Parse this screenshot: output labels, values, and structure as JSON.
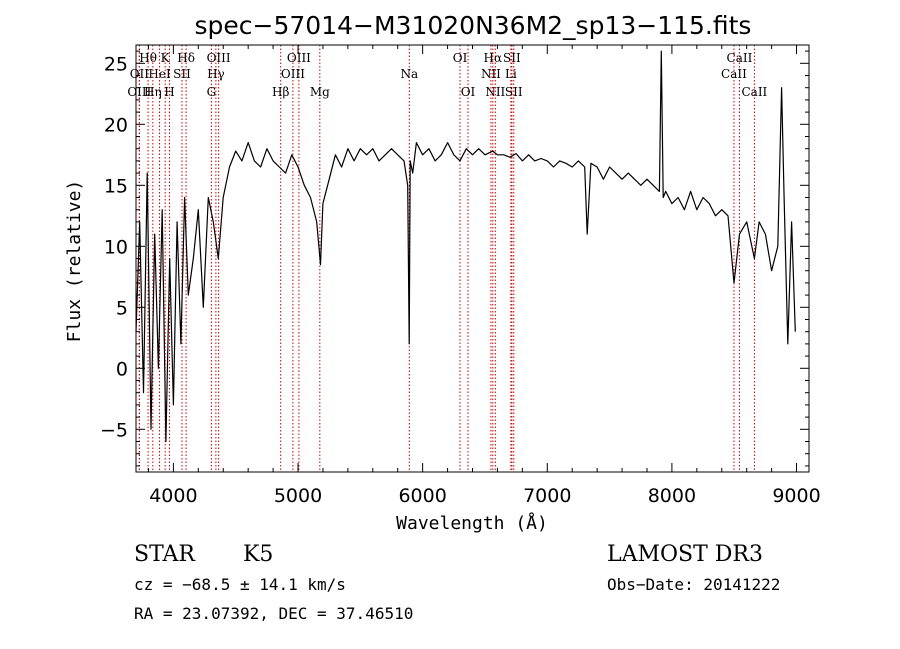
{
  "chart_data": {
    "type": "line",
    "title": "spec−57014−M31020N36M2_sp13−115.fits",
    "xlabel": "Wavelength (Å)",
    "ylabel": "Flux (relative)",
    "xlim": [
      3700,
      9100
    ],
    "ylim": [
      -8.5,
      26.5
    ],
    "xticks": [
      4000,
      5000,
      6000,
      7000,
      8000,
      9000
    ],
    "yticks": [
      -5,
      0,
      5,
      10,
      15,
      20,
      25
    ],
    "xtick_labels": [
      "4000",
      "5000",
      "6000",
      "7000",
      "8000",
      "9000"
    ],
    "ytick_labels": [
      "−5",
      "0",
      "5",
      "10",
      "15",
      "20",
      "25"
    ],
    "grid": false,
    "series": [
      {
        "name": "flux",
        "x": [
          3700,
          3730,
          3760,
          3790,
          3820,
          3850,
          3880,
          3910,
          3940,
          3970,
          4000,
          4030,
          4060,
          4090,
          4120,
          4160,
          4200,
          4240,
          4280,
          4320,
          4360,
          4400,
          4450,
          4500,
          4550,
          4600,
          4650,
          4700,
          4750,
          4800,
          4850,
          4900,
          4950,
          5000,
          5050,
          5100,
          5150,
          5180,
          5200,
          5250,
          5300,
          5350,
          5400,
          5450,
          5500,
          5550,
          5600,
          5650,
          5700,
          5750,
          5800,
          5850,
          5880,
          5892,
          5900,
          5920,
          5950,
          6000,
          6050,
          6100,
          6150,
          6200,
          6250,
          6300,
          6350,
          6400,
          6450,
          6500,
          6563,
          6600,
          6650,
          6700,
          6750,
          6800,
          6850,
          6900,
          6950,
          7000,
          7050,
          7100,
          7150,
          7200,
          7250,
          7300,
          7320,
          7350,
          7400,
          7450,
          7500,
          7550,
          7600,
          7650,
          7700,
          7750,
          7800,
          7850,
          7900,
          7915,
          7930,
          7950,
          8000,
          8050,
          8100,
          8150,
          8200,
          8250,
          8300,
          8350,
          8400,
          8450,
          8498,
          8542,
          8600,
          8662,
          8700,
          8750,
          8800,
          8850,
          8880,
          8900,
          8930,
          8960,
          8990
        ],
        "y": [
          3.0,
          12.0,
          -2.0,
          16.0,
          -5.0,
          11.0,
          0.0,
          13.0,
          -6.0,
          9.0,
          -3.0,
          12.0,
          2.0,
          14.0,
          6.0,
          9.0,
          13.0,
          5.0,
          14.0,
          12.0,
          9.0,
          14.0,
          16.5,
          17.8,
          17.0,
          18.5,
          17.0,
          16.5,
          18.0,
          17.0,
          16.5,
          16.0,
          17.5,
          16.5,
          15.0,
          14.0,
          12.0,
          8.5,
          13.5,
          15.5,
          17.5,
          16.5,
          18.0,
          17.0,
          18.0,
          17.5,
          18.0,
          17.0,
          17.5,
          18.0,
          17.5,
          17.0,
          15.0,
          2.0,
          17.0,
          16.0,
          18.5,
          17.5,
          18.0,
          17.0,
          17.5,
          18.5,
          17.5,
          17.0,
          18.0,
          17.5,
          18.0,
          17.5,
          17.8,
          17.5,
          17.5,
          17.3,
          17.6,
          17.0,
          17.5,
          17.0,
          17.2,
          17.0,
          16.5,
          17.0,
          16.8,
          16.5,
          17.0,
          16.5,
          11.0,
          16.8,
          16.5,
          15.5,
          16.5,
          16.0,
          15.5,
          16.0,
          15.5,
          15.0,
          15.5,
          15.0,
          14.5,
          26.0,
          14.0,
          14.5,
          13.5,
          14.0,
          13.0,
          14.5,
          13.0,
          14.0,
          13.5,
          12.5,
          13.0,
          12.5,
          7.0,
          11.0,
          12.0,
          9.0,
          12.0,
          11.0,
          8.0,
          10.0,
          23.0,
          14.0,
          2.0,
          12.0,
          3.0
        ]
      }
    ],
    "line_markers": [
      {
        "label": "Hθ",
        "wavelength": 3797,
        "row": 1
      },
      {
        "label": "OII",
        "wavelength": 3727,
        "row": 2
      },
      {
        "label": "OIII",
        "wavelength": 3727,
        "row": 3
      },
      {
        "label": "Hη",
        "wavelength": 3835,
        "row": 3
      },
      {
        "label": "K",
        "wavelength": 3934,
        "row": 1
      },
      {
        "label": "HeI",
        "wavelength": 3889,
        "row": 2
      },
      {
        "label": "H",
        "wavelength": 3969,
        "row": 3
      },
      {
        "label": "Hδ",
        "wavelength": 4102,
        "row": 1
      },
      {
        "label": "SII",
        "wavelength": 4069,
        "row": 2
      },
      {
        "label": "OIII",
        "wavelength": 4363,
        "row": 1
      },
      {
        "label": "Hγ",
        "wavelength": 4341,
        "row": 2
      },
      {
        "label": "G",
        "wavelength": 4305,
        "row": 3
      },
      {
        "label": "OIII",
        "wavelength": 5007,
        "row": 1
      },
      {
        "label": "OIII",
        "wavelength": 4959,
        "row": 2
      },
      {
        "label": "Hβ",
        "wavelength": 4861,
        "row": 3
      },
      {
        "label": "Mg",
        "wavelength": 5175,
        "row": 3
      },
      {
        "label": "Na",
        "wavelength": 5893,
        "row": 2
      },
      {
        "label": "OI",
        "wavelength": 6300,
        "row": 1
      },
      {
        "label": "OI",
        "wavelength": 6364,
        "row": 3
      },
      {
        "label": "Hα",
        "wavelength": 6563,
        "row": 1
      },
      {
        "label": "NII",
        "wavelength": 6548,
        "row": 2
      },
      {
        "label": "NII",
        "wavelength": 6583,
        "row": 3
      },
      {
        "label": "SII",
        "wavelength": 6716,
        "row": 1
      },
      {
        "label": "Li",
        "wavelength": 6708,
        "row": 2
      },
      {
        "label": "SII",
        "wavelength": 6731,
        "row": 3
      },
      {
        "label": "CaII",
        "wavelength": 8542,
        "row": 1
      },
      {
        "label": "CaII",
        "wavelength": 8498,
        "row": 2
      },
      {
        "label": "CaII",
        "wavelength": 8662,
        "row": 3
      }
    ]
  },
  "info": {
    "object_class": "STAR",
    "subclass": "K5",
    "survey": "LAMOST DR3",
    "cz": "cz = −68.5 ± 14.1 km/s",
    "obs_date": "Obs−Date: 20141222",
    "coords": "RA =  23.07392, DEC =  37.46510"
  },
  "colors": {
    "line_marker": "#cc0000",
    "spectrum": "#000000",
    "axes": "#000000"
  }
}
